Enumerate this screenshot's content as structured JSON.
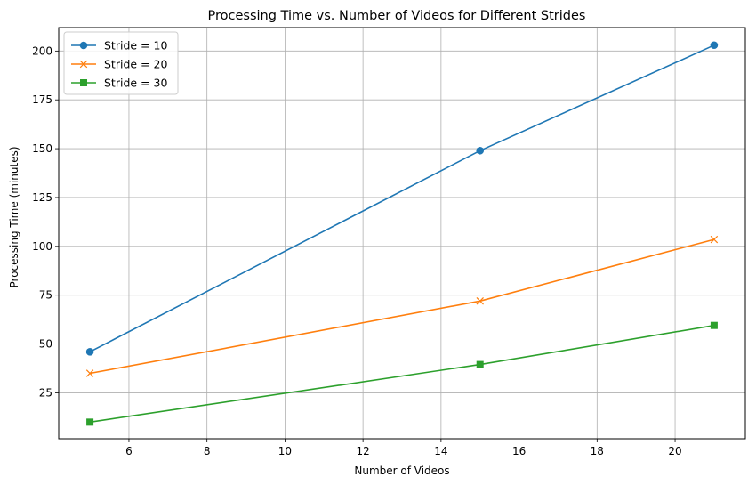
{
  "chart_data": {
    "type": "line",
    "title": "Processing Time vs. Number of Videos for Different Strides",
    "xlabel": "Number of Videos",
    "ylabel": "Processing Time (minutes)",
    "x": [
      5,
      15,
      21
    ],
    "xlim": [
      4.2,
      21.8
    ],
    "ylim": [
      1.5,
      212
    ],
    "xticks": [
      6,
      8,
      10,
      12,
      14,
      16,
      18,
      20
    ],
    "yticks": [
      25,
      50,
      75,
      100,
      125,
      150,
      175,
      200
    ],
    "grid": true,
    "legend_position": "top-left",
    "series": [
      {
        "name": "Stride = 10",
        "values": [
          46,
          149,
          203
        ],
        "color": "#1f77b4",
        "marker": "circle"
      },
      {
        "name": "Stride = 20",
        "values": [
          35,
          72,
          103.5
        ],
        "color": "#ff7f0e",
        "marker": "x"
      },
      {
        "name": "Stride = 30",
        "values": [
          10,
          39.5,
          59.5
        ],
        "color": "#2ca02c",
        "marker": "square"
      }
    ]
  }
}
